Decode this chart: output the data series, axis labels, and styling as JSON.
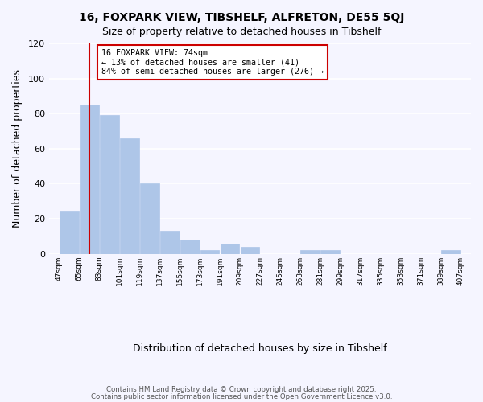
{
  "title": "16, FOXPARK VIEW, TIBSHELF, ALFRETON, DE55 5QJ",
  "subtitle": "Size of property relative to detached houses in Tibshelf",
  "xlabel": "Distribution of detached houses by size in Tibshelf",
  "ylabel": "Number of detached properties",
  "bins": [
    47,
    65,
    83,
    101,
    119,
    137,
    155,
    173,
    191,
    209,
    227,
    245,
    263,
    281,
    299,
    317,
    335,
    353,
    371,
    389,
    407
  ],
  "counts": [
    24,
    85,
    79,
    66,
    40,
    13,
    8,
    2,
    6,
    4,
    0,
    0,
    2,
    2,
    0,
    0,
    0,
    0,
    0,
    2
  ],
  "bar_color": "#aec6e8",
  "bar_edge_color": "#aec6e8",
  "vline_color": "#cc0000",
  "vline_x": 74,
  "annotation_title": "16 FOXPARK VIEW: 74sqm",
  "annotation_line1": "← 13% of detached houses are smaller (41)",
  "annotation_line2": "84% of semi-detached houses are larger (276) →",
  "annotation_box_color": "#ffffff",
  "annotation_box_edge_color": "#cc0000",
  "ylim": [
    0,
    120
  ],
  "yticks": [
    0,
    20,
    40,
    60,
    80,
    100,
    120
  ],
  "footer1": "Contains HM Land Registry data © Crown copyright and database right 2025.",
  "footer2": "Contains public sector information licensed under the Open Government Licence v3.0.",
  "bg_color": "#f5f5ff",
  "grid_color": "#ffffff",
  "tick_labels": [
    "47sqm",
    "65sqm",
    "83sqm",
    "101sqm",
    "119sqm",
    "137sqm",
    "155sqm",
    "173sqm",
    "191sqm",
    "209sqm",
    "227sqm",
    "245sqm",
    "263sqm",
    "281sqm",
    "299sqm",
    "317sqm",
    "335sqm",
    "353sqm",
    "371sqm",
    "389sqm",
    "407sqm"
  ]
}
